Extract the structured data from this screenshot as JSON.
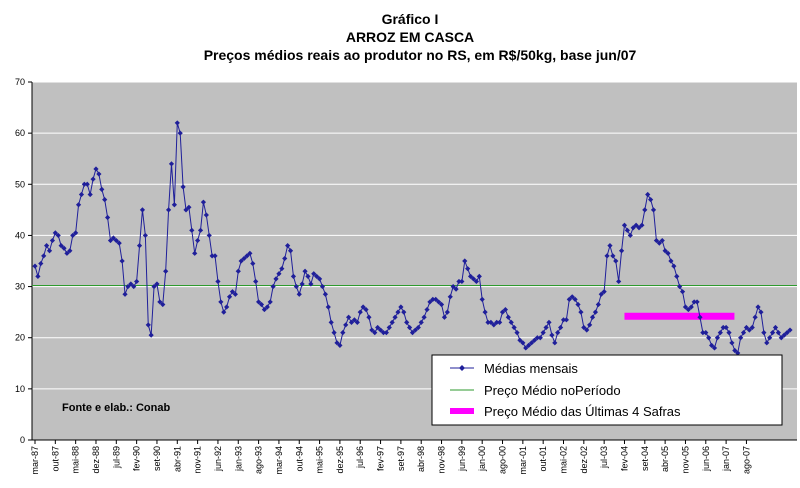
{
  "chart_data": {
    "type": "line",
    "title": "Gráfico I",
    "subtitle1": "ARROZ EM CASCA",
    "subtitle2": "Preços médios reais ao produtor no RS, em R$/50kg, base jun/07",
    "xlabel": "",
    "ylabel": "",
    "ylim": [
      0,
      70
    ],
    "yticks": [
      0,
      10,
      20,
      30,
      40,
      50,
      60,
      70
    ],
    "grid": true,
    "legend_position": "bottom-right",
    "source_note": "Fonte e elab.: Conab",
    "xtick_labels": [
      "mar-87",
      "out-87",
      "mai-88",
      "dez-88",
      "jul-89",
      "fev-90",
      "set-90",
      "abr-91",
      "nov-91",
      "jun-92",
      "jan-93",
      "ago-93",
      "mar-94",
      "out-94",
      "mai-95",
      "dez-95",
      "jul-96",
      "fev-97",
      "set-97",
      "abr-98",
      "nov-98",
      "jun-99",
      "jan-00",
      "ago-00",
      "mar-01",
      "out-01",
      "mai-02",
      "dez-02",
      "jul-03",
      "fev-04",
      "set-04",
      "abr-05",
      "nov-05",
      "jun-06",
      "jan-07",
      "ago-07"
    ],
    "series": [
      {
        "name": "Médias mensais",
        "color": "#1f1f9a",
        "marker": "diamond",
        "values": [
          34,
          32,
          34.5,
          36,
          38,
          37,
          39,
          40.5,
          40,
          38,
          37.5,
          36.5,
          37,
          40,
          40.5,
          46,
          48,
          50,
          50,
          48,
          51,
          53,
          52,
          49,
          47,
          43.5,
          39,
          39.5,
          39,
          38.5,
          35,
          28.5,
          30,
          30.5,
          30,
          31,
          38,
          45,
          40,
          22.5,
          20.5,
          30,
          30.5,
          27,
          26.5,
          33,
          45,
          54,
          46,
          62,
          60,
          49.5,
          45,
          45.5,
          41,
          36.5,
          39,
          41,
          46.5,
          44,
          40,
          36,
          36,
          31,
          27,
          25,
          26,
          28,
          29,
          28.5,
          33,
          35,
          35.5,
          36,
          36.5,
          34.5,
          31,
          27,
          26.5,
          25.5,
          26,
          27,
          30,
          31.5,
          32.5,
          33.5,
          35.5,
          38,
          37,
          32,
          30,
          28.5,
          30.5,
          33,
          32,
          30.5,
          32.5,
          32,
          31.5,
          30,
          28.5,
          26,
          23,
          21,
          19,
          18.5,
          21,
          22.5,
          24,
          23,
          23.5,
          23,
          25,
          26,
          25.5,
          24,
          21.5,
          21,
          22,
          21.5,
          21,
          21,
          22,
          23,
          24,
          25,
          26,
          25,
          23,
          22,
          21,
          21.5,
          22,
          23,
          24,
          25.5,
          27,
          27.5,
          27.5,
          27,
          26.5,
          24,
          25,
          28,
          30,
          29.5,
          31,
          31,
          35,
          33.5,
          32,
          31.5,
          31,
          32,
          27.5,
          25,
          23,
          23,
          22.5,
          23,
          23,
          25,
          25.5,
          24,
          23,
          22,
          21,
          19.5,
          19,
          18,
          18.5,
          19,
          19.5,
          20,
          20,
          21,
          22,
          23,
          20.5,
          19,
          21,
          22,
          23.5,
          23.5,
          27.5,
          28,
          27.5,
          26.5,
          25,
          22,
          21.5,
          22.5,
          24,
          25,
          26.5,
          28.5,
          29,
          36,
          38,
          36,
          35,
          31,
          37,
          42,
          41,
          40,
          41.5,
          42,
          41.5,
          42,
          45,
          48,
          47,
          45,
          39,
          38.5,
          39,
          37,
          36.5,
          35,
          34,
          32,
          30,
          29,
          26,
          25.5,
          26,
          27,
          27,
          24,
          21,
          21,
          20,
          18.5,
          18,
          20,
          21,
          22,
          22,
          21,
          19,
          17.5,
          17,
          20,
          21,
          22,
          21.5,
          22,
          24,
          26,
          25,
          21,
          19,
          20,
          21,
          22,
          21,
          20,
          20.5,
          21,
          21.5
        ]
      },
      {
        "name": "Preço Médio noPeríodo",
        "color": "#2e9a2e",
        "value": 30.2
      },
      {
        "name": "Preço Médio das Últimas 4 Safras",
        "color": "#ff00ff",
        "value": 24.2,
        "x_start_label": "fev-04",
        "x_end_label": "ago-07"
      }
    ]
  }
}
